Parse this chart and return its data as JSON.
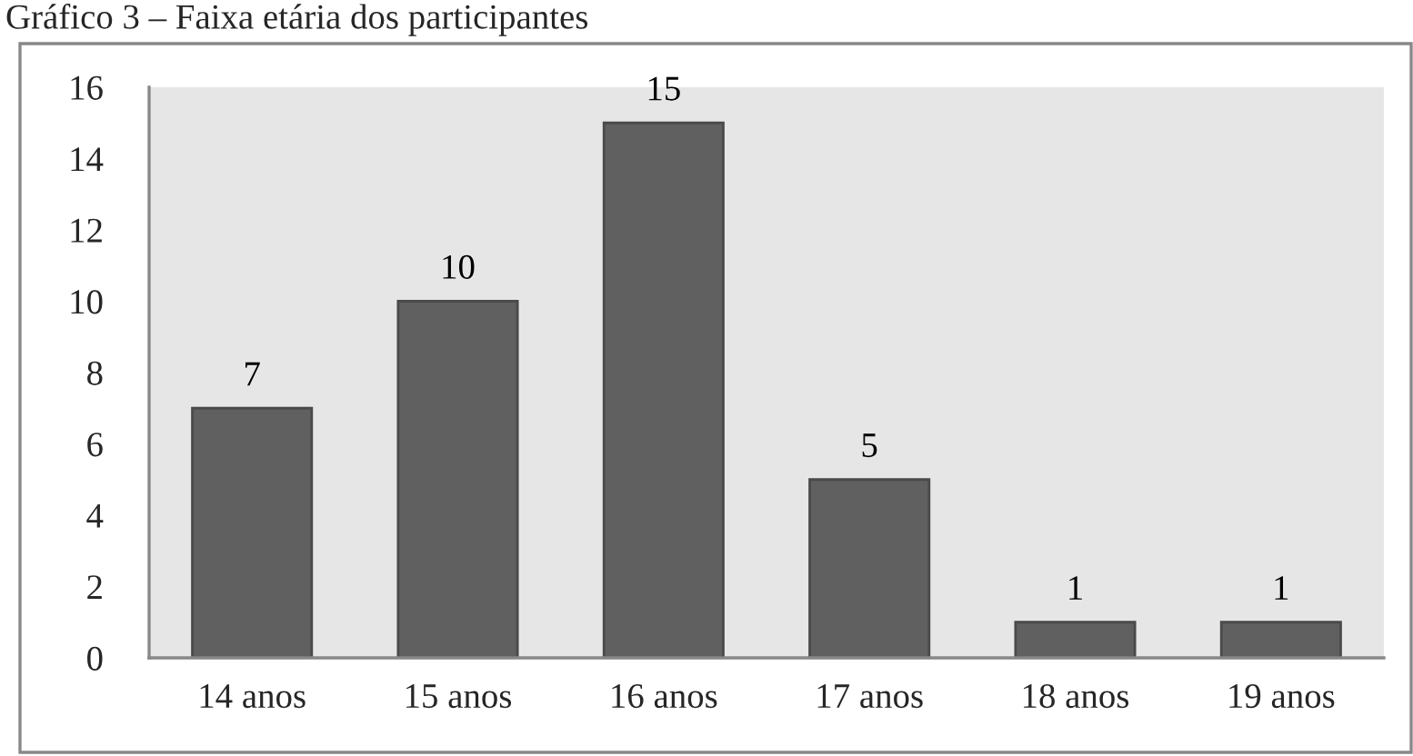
{
  "chart_data": {
    "type": "bar",
    "title": "Gráfico 3 – Faixa etária dos participantes",
    "categories": [
      "14 anos",
      "15 anos",
      "16 anos",
      "17 anos",
      "18 anos",
      "19 anos"
    ],
    "values": [
      7,
      10,
      15,
      5,
      1,
      1
    ],
    "color": "#606060",
    "ylim": [
      0,
      16
    ],
    "yticks": [
      0,
      2,
      4,
      6,
      8,
      10,
      12,
      14,
      16
    ],
    "data_labels": true
  }
}
